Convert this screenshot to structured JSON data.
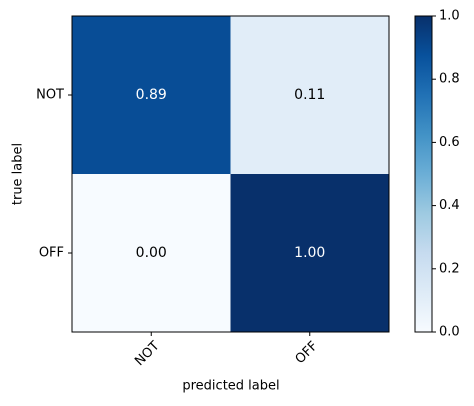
{
  "chart_data": {
    "type": "heatmap",
    "x_label": "predicted label",
    "y_label": "true label",
    "x_categories": [
      "NOT",
      "OFF"
    ],
    "y_categories": [
      "NOT",
      "OFF"
    ],
    "values": [
      [
        0.89,
        0.11
      ],
      [
        0,
        1
      ]
    ],
    "value_labels": [
      [
        "0.89",
        "0.11"
      ],
      [
        "0.00",
        "1.00"
      ]
    ],
    "colormap": "Blues",
    "clim": [
      0,
      1
    ],
    "colorbar_ticks": [
      {
        "value": 0,
        "label": "0.0"
      },
      0.2,
      0.4,
      0.6,
      0.8,
      {
        "value": 1,
        "label": "1.0"
      }
    ]
  }
}
